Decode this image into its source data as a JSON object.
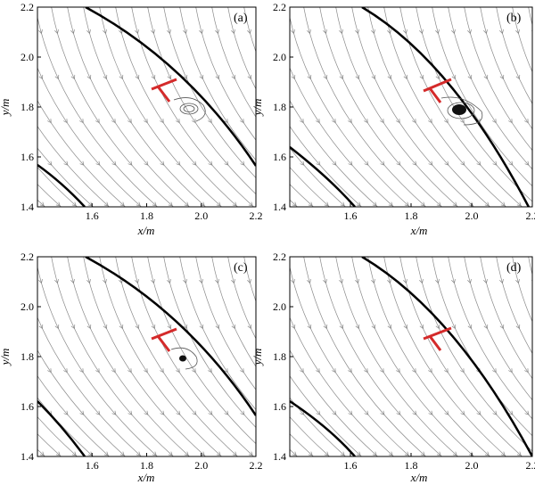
{
  "figure": {
    "x_axis_label": "x/m",
    "y_axis_label": "y/m",
    "x_ticks": [
      "1.6",
      "1.8",
      "2.0",
      "2.2"
    ],
    "y_ticks": [
      "1.4",
      "1.6",
      "1.8",
      "2.0",
      "2.2"
    ],
    "x_range": [
      1.4,
      2.2
    ],
    "y_range": [
      1.4,
      2.2
    ],
    "colors": {
      "plate": "#d42a2a",
      "streamline": "#8a8a8a",
      "wall": "#000000",
      "vortex": "#000000"
    }
  },
  "panels": [
    {
      "label": "(a)",
      "vortex": "open-spiral"
    },
    {
      "label": "(b)",
      "vortex": "dark-core"
    },
    {
      "label": "(c)",
      "vortex": "small-core"
    },
    {
      "label": "(d)",
      "vortex": "none"
    }
  ]
}
